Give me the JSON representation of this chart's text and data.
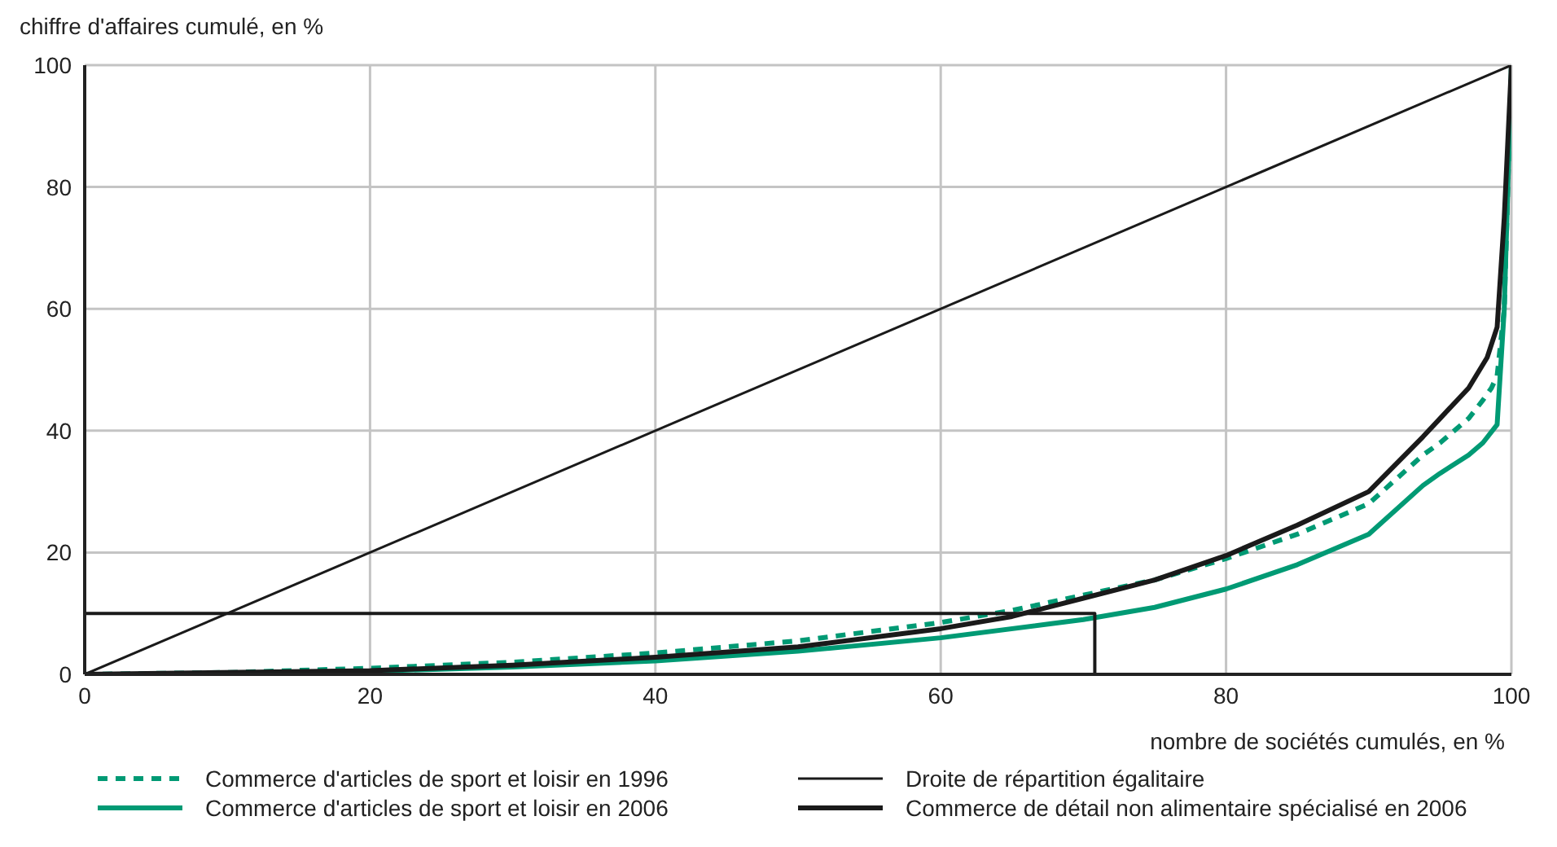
{
  "chart_data": {
    "type": "line",
    "xlabel": "nombre de sociétés cumulés, en %",
    "ylabel": "chiffre d'affaires cumulé, en %",
    "xlim": [
      0,
      100
    ],
    "ylim": [
      0,
      100
    ],
    "xticks": [
      0,
      20,
      40,
      60,
      80,
      100
    ],
    "yticks": [
      0,
      20,
      40,
      60,
      80,
      100
    ],
    "grid": true,
    "legend": "bottom",
    "marker": "none",
    "series": [
      {
        "name": "Commerce d'articles de sport et loisir en 1996",
        "color": "#009a74",
        "line_style": "dashed",
        "x": [
          0,
          10,
          20,
          30,
          40,
          50,
          60,
          65,
          70,
          75,
          80,
          85,
          90,
          93.8,
          95,
          97,
          98,
          98.6,
          99,
          99.5,
          100
        ],
        "values": [
          0,
          0.3,
          1,
          2,
          3.5,
          5.5,
          8.5,
          10.5,
          13,
          15.5,
          19,
          23,
          28,
          36,
          38,
          42,
          45,
          47,
          49,
          60,
          100
        ]
      },
      {
        "name": "Commerce d'articles de sport et loisir en 2006",
        "color": "#009a74",
        "line_style": "solid",
        "x": [
          0,
          10,
          20,
          30,
          40,
          50,
          60,
          70,
          75,
          80,
          85,
          90,
          93.8,
          95,
          97,
          98,
          99,
          99.5,
          100
        ],
        "values": [
          0,
          0,
          0.5,
          1.2,
          2.2,
          3.8,
          6,
          9,
          11,
          14,
          18,
          23,
          31,
          33,
          36,
          38,
          41,
          60,
          100
        ]
      },
      {
        "name": "Droite de répartition égalitaire",
        "color": "#1a1a1a",
        "line_style": "solid",
        "x": [
          0,
          100
        ],
        "values": [
          0,
          100
        ]
      },
      {
        "name": "Commerce de détail non alimentaire spécialisé en 2006",
        "color": "#1a1a1a",
        "line_style": "solid",
        "x": [
          0,
          20,
          30,
          40,
          50,
          60,
          65,
          70,
          75,
          80,
          85,
          90,
          93.8,
          95,
          97,
          98.3,
          99,
          99.5,
          100
        ],
        "values": [
          0,
          0.6,
          1.5,
          2.8,
          4.5,
          7.5,
          9.5,
          12.5,
          15.5,
          19.5,
          24.5,
          30,
          39,
          42,
          47,
          52,
          57,
          75,
          100
        ]
      },
      {
        "color": "#1a1a1a",
        "line_style": "solid",
        "x": [
          0,
          70.8,
          70.8
        ],
        "values": [
          10,
          10,
          0
        ]
      }
    ]
  }
}
